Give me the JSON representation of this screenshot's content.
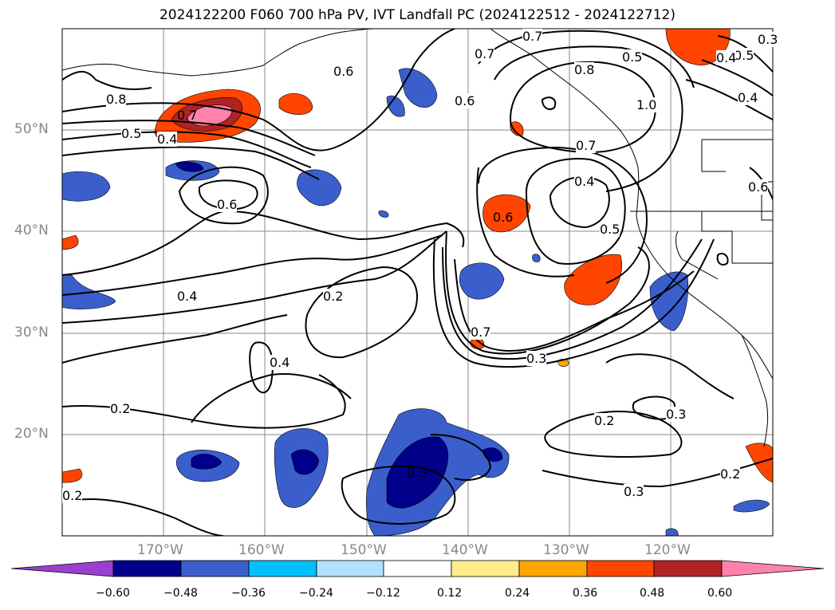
{
  "title": "2024122200 F060 700 hPa PV, IVT Landfall PC (2024122512 - 2024122712)",
  "lat_labels": [
    "50°N",
    "40°N",
    "30°N",
    "20°N"
  ],
  "lon_labels": [
    "170°W",
    "160°W",
    "150°W",
    "140°W",
    "130°W",
    "120°W"
  ],
  "contour_labels": [
    "0.8",
    "0.7",
    "0.5",
    "0.4",
    "0.6",
    "0.4",
    "0.2",
    "0.3",
    "0.5",
    "0.8",
    "1.0",
    "0.7",
    "0.6",
    "0.4",
    "0.5",
    "0.2",
    "0.7",
    "0.3",
    "0.2",
    "0.3",
    "0.3",
    "0.2",
    "0.4",
    "0.2",
    "0.6",
    "0.5",
    "0.4",
    "0.6",
    "0.7",
    "0.6",
    "0.4",
    "0.3",
    "0.7"
  ],
  "colorbar": {
    "ticks": [
      "−0.60",
      "−0.48",
      "−0.36",
      "−0.24",
      "−0.12",
      "0.12",
      "0.24",
      "0.36",
      "0.48",
      "0.60"
    ],
    "colors": [
      "#9a3fd0",
      "#00008b",
      "#3a5fcd",
      "#00bfff",
      "#b0e2ff",
      "#ffffff",
      "#ffec8b",
      "#ffa500",
      "#ff4500",
      "#b22222",
      "#ff82ab",
      "#ff82ab"
    ]
  }
}
